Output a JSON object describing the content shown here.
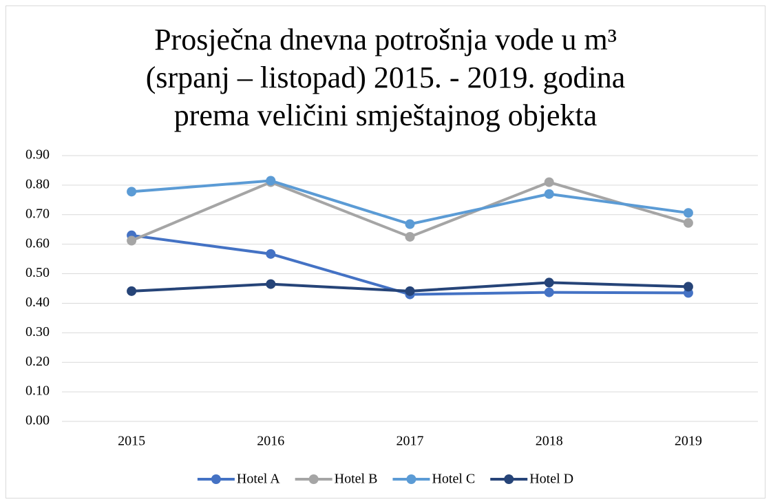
{
  "chart_data": {
    "type": "line",
    "title": [
      "Prosječna dnevna potrošnja vode u m³",
      "(srpanj – listopad) 2015. - 2019. godina",
      "prema veličini smještajnog objekta"
    ],
    "categories": [
      "2015",
      "2016",
      "2017",
      "2018",
      "2019"
    ],
    "series": [
      {
        "name": "Hotel A",
        "color": "#4472c4",
        "values": [
          0.63,
          0.567,
          0.43,
          0.437,
          0.435
        ]
      },
      {
        "name": "Hotel B",
        "color": "#a5a5a5",
        "values": [
          0.612,
          0.81,
          0.625,
          0.81,
          0.672
        ]
      },
      {
        "name": "Hotel C",
        "color": "#5b9bd5",
        "values": [
          0.778,
          0.815,
          0.668,
          0.77,
          0.706
        ]
      },
      {
        "name": "Hotel D",
        "color": "#264478",
        "values": [
          0.441,
          0.465,
          0.441,
          0.47,
          0.456
        ]
      }
    ],
    "ylim": [
      0,
      0.9
    ],
    "yticks": [
      {
        "value": 0,
        "label": "0.00"
      },
      {
        "value": 0.1,
        "label": "0.10"
      },
      {
        "value": 0.2,
        "label": "0.20"
      },
      {
        "value": 0.3,
        "label": "0.30"
      },
      {
        "value": 0.4,
        "label": "0.40"
      },
      {
        "value": 0.5,
        "label": "0.50"
      },
      {
        "value": 0.6,
        "label": "0.60"
      },
      {
        "value": 0.7,
        "label": "0.70"
      },
      {
        "value": 0.8,
        "label": "0.80"
      },
      {
        "value": 0.9,
        "label": "0.90"
      }
    ],
    "grid": true,
    "legend": "bottom"
  }
}
